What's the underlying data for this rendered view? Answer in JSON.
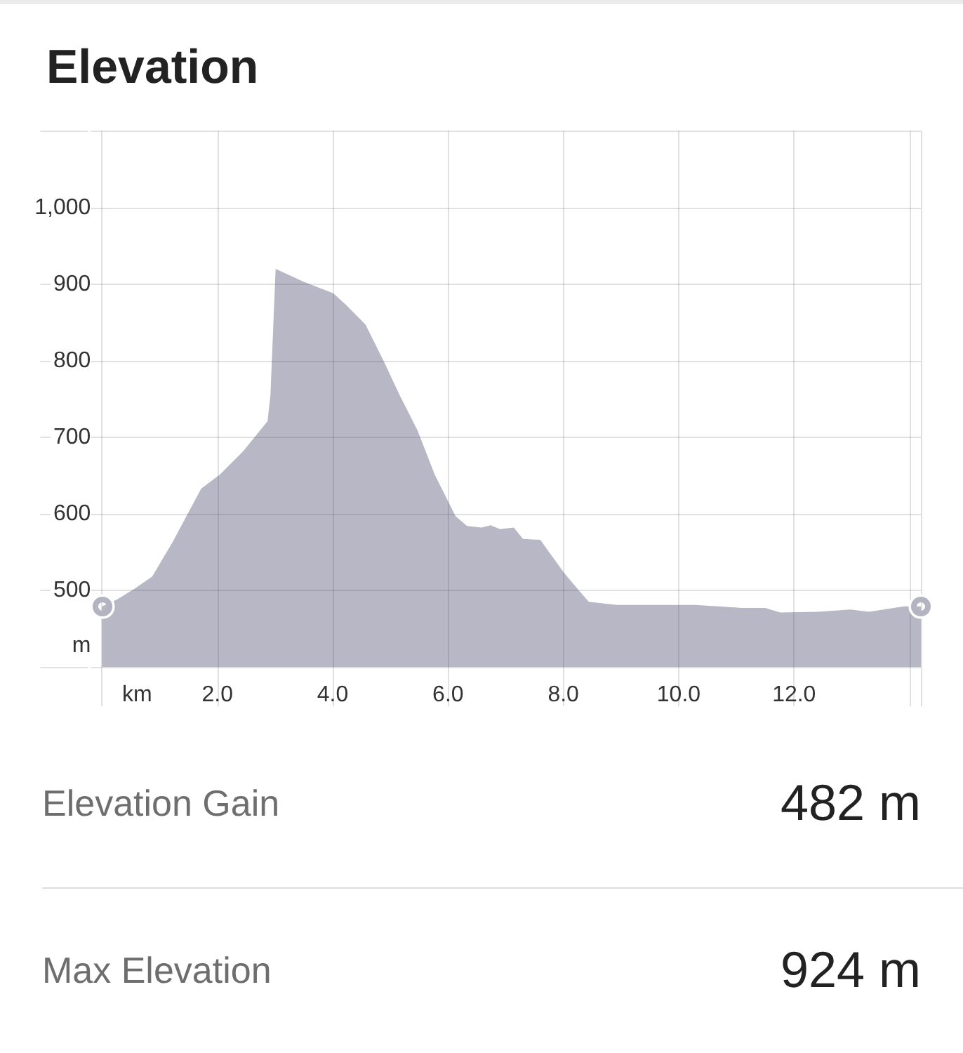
{
  "chart_data": {
    "type": "area",
    "title": "Elevation",
    "xlabel": "km",
    "ylabel": "m",
    "x": [
      0,
      0.26,
      0.58,
      0.87,
      1.23,
      1.72,
      2.04,
      2.45,
      2.87,
      2.92,
      3.01,
      3.5,
      4.01,
      4.23,
      4.57,
      4.88,
      5.16,
      5.47,
      5.77,
      6.13,
      6.33,
      6.58,
      6.74,
      6.9,
      7.14,
      7.3,
      7.6,
      8.0,
      8.2,
      8.44,
      8.68,
      8.93,
      10.0,
      10.3,
      11.1,
      11.5,
      11.76,
      12.41,
      12.98,
      13.3,
      13.91,
      14.2
    ],
    "values": [
      479,
      488,
      503,
      518,
      564,
      633,
      651,
      682,
      721,
      755,
      920,
      903,
      888,
      873,
      847,
      800,
      755,
      709,
      651,
      597,
      584,
      582,
      585,
      580,
      582,
      567,
      566,
      524,
      506,
      485,
      483,
      481,
      481,
      481,
      477,
      477,
      471,
      472,
      475,
      472,
      479,
      479
    ],
    "color": "#b7b7c5",
    "xlim": [
      0,
      14.2
    ],
    "xticks": [
      {
        "value": 0,
        "label": null
      },
      {
        "value": 2,
        "label": "2.0"
      },
      {
        "value": 4,
        "label": "4.0"
      },
      {
        "value": 6,
        "label": "6.0"
      },
      {
        "value": 8,
        "label": "8.0"
      },
      {
        "value": 10,
        "label": "10.0"
      },
      {
        "value": 12,
        "label": "12.0"
      },
      {
        "value": 14,
        "label": null
      },
      {
        "value": 14.2,
        "label": null
      }
    ],
    "ylim": [
      400,
      1100
    ],
    "yticks": [
      {
        "value": 400,
        "label": null
      },
      500,
      600,
      700,
      800,
      900,
      {
        "value": 1000,
        "label": "1,000"
      },
      {
        "value": 1100,
        "label": null
      }
    ],
    "grid": true,
    "annotations": [
      "Elevation Gain",
      "482 m",
      "Max Elevation",
      "924 m"
    ]
  }
}
